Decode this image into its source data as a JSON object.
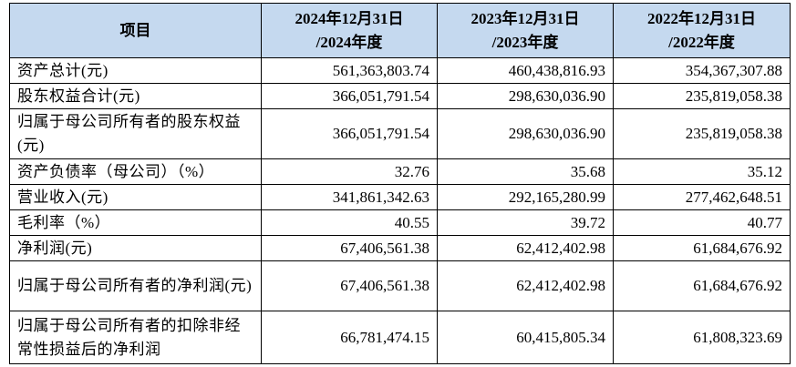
{
  "header": {
    "item_label": "项目",
    "columns": [
      {
        "line1": "2024年12月31日",
        "line2": "/2024年度"
      },
      {
        "line1": "2023年12月31日",
        "line2": "/2023年度"
      },
      {
        "line1": "2022年12月31日",
        "line2": "/2022年度"
      }
    ]
  },
  "rows": [
    {
      "label": "资产总计(元)",
      "values": [
        "561,363,803.74",
        "460,438,816.93",
        "354,367,307.88"
      ]
    },
    {
      "label": "股东权益合计(元)",
      "values": [
        "366,051,791.54",
        "298,630,036.90",
        "235,819,058.38"
      ]
    },
    {
      "label": "归属于母公司所有者的股东权益(元)",
      "values": [
        "366,051,791.54",
        "298,630,036.90",
        "235,819,058.38"
      ]
    },
    {
      "label": "资产负债率（母公司）（%）",
      "values": [
        "32.76",
        "35.68",
        "35.12"
      ]
    },
    {
      "label": "营业收入(元)",
      "values": [
        "341,861,342.63",
        "292,165,280.99",
        "277,462,648.51"
      ]
    },
    {
      "label": "毛利率（%）",
      "values": [
        "40.55",
        "39.72",
        "40.77"
      ]
    },
    {
      "label": "净利润(元)",
      "values": [
        "67,406,561.38",
        "62,412,402.98",
        "61,684,676.92"
      ]
    },
    {
      "label": "归属于母公司所有者的净利润(元)",
      "values": [
        "67,406,561.38",
        "62,412,402.98",
        "61,684,676.92"
      ]
    },
    {
      "label": "归属于母公司所有者的扣除非经常性损益后的净利润",
      "values": [
        "66,781,474.15",
        "60,415,805.34",
        "61,808,323.69"
      ]
    }
  ]
}
